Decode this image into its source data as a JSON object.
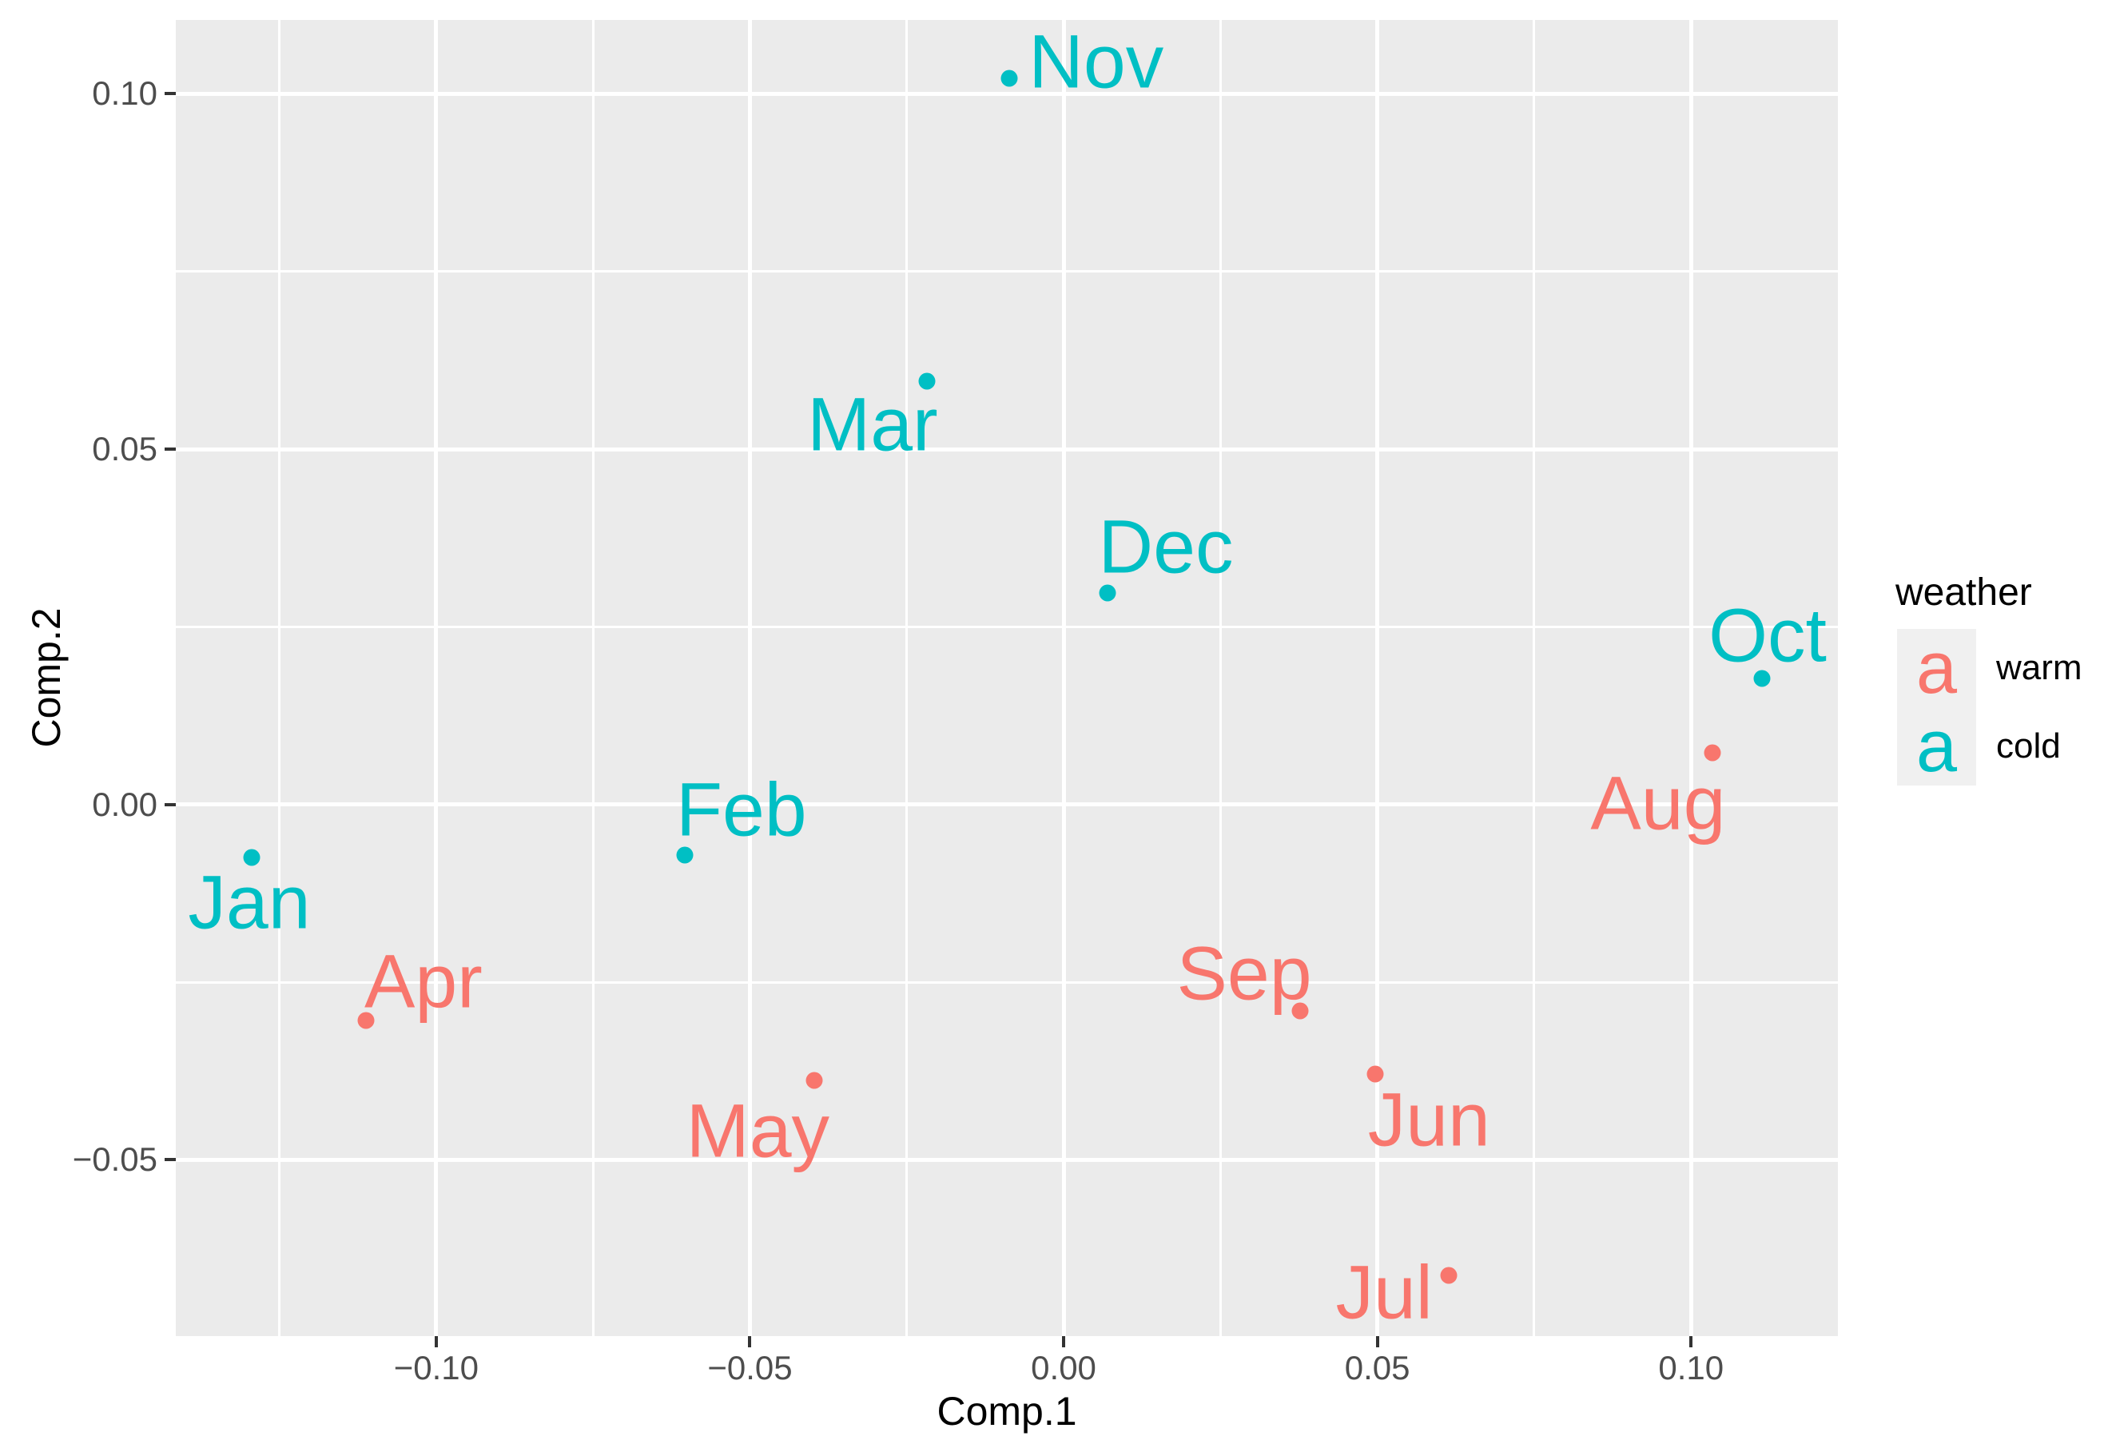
{
  "figure": {
    "background": "#FFFFFF",
    "panel_background": "#EBEBEB",
    "grid_color": "#FFFFFF",
    "tick_mark_color": "#333333",
    "tick_label_color": "#4D4D4D",
    "axis_title_color": "#000000"
  },
  "chart_data": {
    "type": "scatter",
    "title": "",
    "xlabel": "Comp.1",
    "ylabel": "Comp.2",
    "xlim": [
      -0.1415,
      0.1234
    ],
    "ylim": [
      -0.0748,
      0.1104
    ],
    "x_major_ticks": [
      -0.1,
      -0.05,
      0.0,
      0.05,
      0.1
    ],
    "x_tick_labels": [
      "−0.10",
      "−0.05",
      "0.00",
      "0.05",
      "0.10"
    ],
    "x_minor_ticks": [
      -0.125,
      -0.075,
      -0.025,
      0.025,
      0.075
    ],
    "y_major_ticks": [
      0.1,
      0.05,
      0.0,
      -0.05
    ],
    "y_tick_labels": [
      "0.10",
      "0.05",
      "0.00",
      "−0.05"
    ],
    "y_minor_ticks": [
      0.075,
      0.025,
      -0.025
    ],
    "grid": "white major+minor gridlines on gray panel",
    "legend": {
      "title": "weather",
      "position": "right",
      "glyph": "a",
      "entries": [
        {
          "label": "warm",
          "color": "#F8766D"
        },
        {
          "label": "cold",
          "color": "#00BFC4"
        }
      ]
    },
    "series": [
      {
        "name": "warm",
        "color": "#F8766D",
        "points": [
          {
            "label": "Apr",
            "x": -0.1112,
            "y": -0.0304,
            "dx": 72,
            "dy": -48
          },
          {
            "label": "May",
            "x": -0.0397,
            "y": -0.0388,
            "dx": -71,
            "dy": 64
          },
          {
            "label": "Jun",
            "x": 0.0497,
            "y": -0.0379,
            "dx": 67,
            "dy": 58
          },
          {
            "label": "Jul",
            "x": 0.0614,
            "y": -0.0663,
            "dx": -81,
            "dy": 22
          },
          {
            "label": "Aug",
            "x": 0.1034,
            "y": 0.0073,
            "dx": -68,
            "dy": 64
          },
          {
            "label": "Sep",
            "x": 0.0377,
            "y": -0.029,
            "dx": -70,
            "dy": -46
          }
        ]
      },
      {
        "name": "cold",
        "color": "#00BFC4",
        "points": [
          {
            "label": "Jan",
            "x": -0.1294,
            "y": -0.0074,
            "dx": -3,
            "dy": 57
          },
          {
            "label": "Feb",
            "x": -0.0604,
            "y": -0.0071,
            "dx": 71,
            "dy": -56
          },
          {
            "label": "Mar",
            "x": -0.0218,
            "y": 0.0596,
            "dx": -68,
            "dy": 55
          },
          {
            "label": "Oct",
            "x": 0.1113,
            "y": 0.0177,
            "dx": 7,
            "dy": -53
          },
          {
            "label": "Nov",
            "x": -0.0087,
            "y": 0.1022,
            "dx": 109,
            "dy": -20
          },
          {
            "label": "Dec",
            "x": 0.007,
            "y": 0.0298,
            "dx": 73,
            "dy": -57
          }
        ]
      }
    ]
  }
}
